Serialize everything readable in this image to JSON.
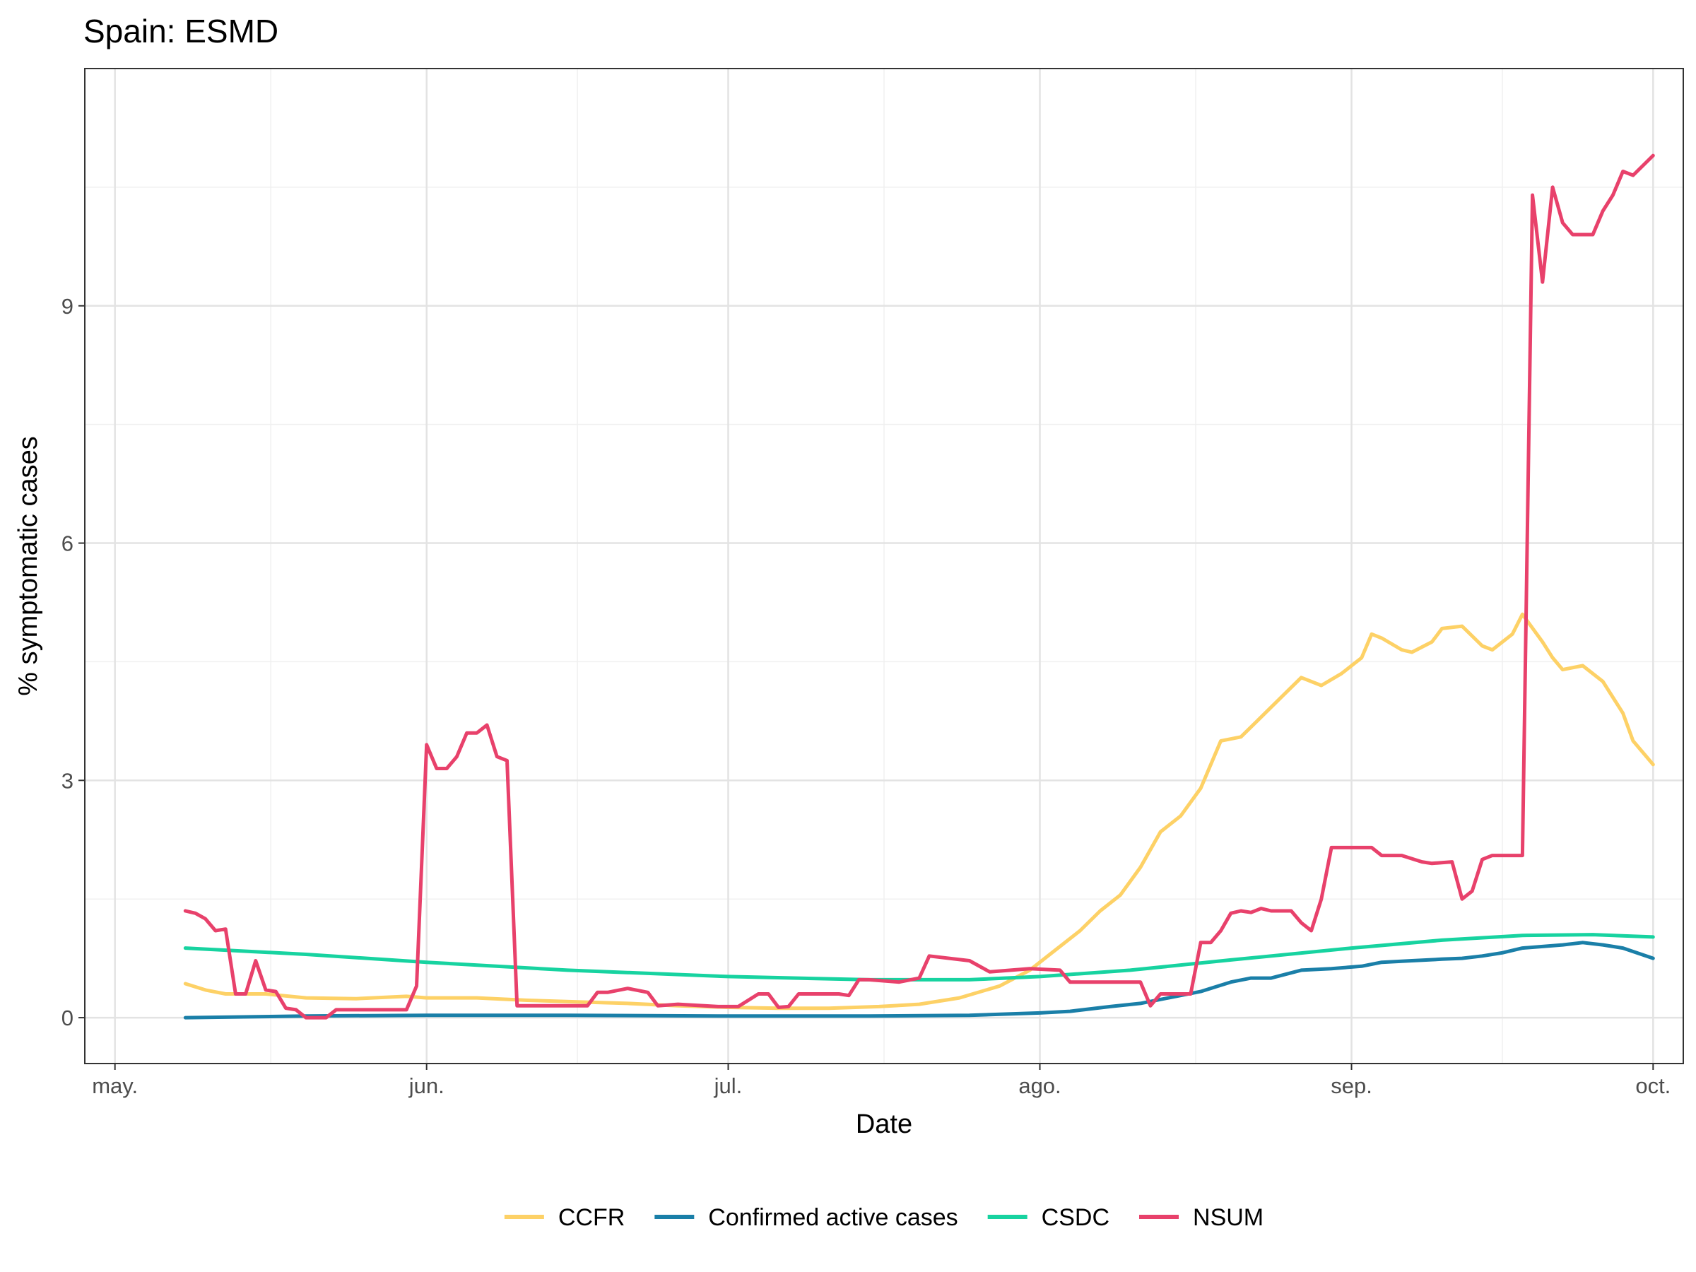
{
  "chart_data": {
    "type": "line",
    "title": "Spain: ESMD",
    "xlabel": "Date",
    "ylabel": "% symptomatic cases",
    "x_axis": {
      "type": "date",
      "range": [
        "2020-04-28",
        "2020-10-04"
      ],
      "ticks": [
        {
          "date": "2020-05-01",
          "label": "may."
        },
        {
          "date": "2020-06-01",
          "label": "jun."
        },
        {
          "date": "2020-07-01",
          "label": "jul."
        },
        {
          "date": "2020-08-01",
          "label": "ago."
        },
        {
          "date": "2020-09-01",
          "label": "sep."
        },
        {
          "date": "2020-10-01",
          "label": "oct."
        }
      ]
    },
    "y_axis": {
      "range": [
        -0.58,
        12.0
      ],
      "ticks": [
        0,
        3,
        6,
        9
      ],
      "tick_labels": [
        "0",
        "3",
        "6",
        "9"
      ]
    },
    "grid": true,
    "legend": {
      "position": "bottom"
    },
    "series": [
      {
        "name": "CCFR",
        "color": "#FDD166",
        "points": [
          [
            "2020-05-08",
            0.43
          ],
          [
            "2020-05-10",
            0.35
          ],
          [
            "2020-05-12",
            0.3
          ],
          [
            "2020-05-16",
            0.3
          ],
          [
            "2020-05-20",
            0.25
          ],
          [
            "2020-05-25",
            0.24
          ],
          [
            "2020-05-30",
            0.27
          ],
          [
            "2020-06-01",
            0.25
          ],
          [
            "2020-06-06",
            0.25
          ],
          [
            "2020-06-11",
            0.22
          ],
          [
            "2020-06-16",
            0.2
          ],
          [
            "2020-06-21",
            0.18
          ],
          [
            "2020-06-26",
            0.15
          ],
          [
            "2020-07-01",
            0.13
          ],
          [
            "2020-07-06",
            0.12
          ],
          [
            "2020-07-11",
            0.12
          ],
          [
            "2020-07-16",
            0.14
          ],
          [
            "2020-07-20",
            0.17
          ],
          [
            "2020-07-24",
            0.25
          ],
          [
            "2020-07-28",
            0.4
          ],
          [
            "2020-07-31",
            0.6
          ],
          [
            "2020-08-02",
            0.8
          ],
          [
            "2020-08-05",
            1.1
          ],
          [
            "2020-08-07",
            1.35
          ],
          [
            "2020-08-09",
            1.55
          ],
          [
            "2020-08-11",
            1.9
          ],
          [
            "2020-08-13",
            2.35
          ],
          [
            "2020-08-15",
            2.55
          ],
          [
            "2020-08-17",
            2.9
          ],
          [
            "2020-08-19",
            3.5
          ],
          [
            "2020-08-21",
            3.55
          ],
          [
            "2020-08-23",
            3.8
          ],
          [
            "2020-08-25",
            4.05
          ],
          [
            "2020-08-27",
            4.3
          ],
          [
            "2020-08-29",
            4.2
          ],
          [
            "2020-08-31",
            4.35
          ],
          [
            "2020-09-02",
            4.55
          ],
          [
            "2020-09-03",
            4.85
          ],
          [
            "2020-09-04",
            4.8
          ],
          [
            "2020-09-06",
            4.65
          ],
          [
            "2020-09-07",
            4.62
          ],
          [
            "2020-09-09",
            4.75
          ],
          [
            "2020-09-10",
            4.92
          ],
          [
            "2020-09-12",
            4.95
          ],
          [
            "2020-09-14",
            4.7
          ],
          [
            "2020-09-15",
            4.65
          ],
          [
            "2020-09-17",
            4.85
          ],
          [
            "2020-09-18",
            5.1
          ],
          [
            "2020-09-20",
            4.75
          ],
          [
            "2020-09-21",
            4.55
          ],
          [
            "2020-09-22",
            4.4
          ],
          [
            "2020-09-24",
            4.45
          ],
          [
            "2020-09-26",
            4.25
          ],
          [
            "2020-09-28",
            3.85
          ],
          [
            "2020-09-29",
            3.5
          ],
          [
            "2020-10-01",
            3.2
          ]
        ]
      },
      {
        "name": "Confirmed active cases",
        "color": "#1A7FA8",
        "points": [
          [
            "2020-05-08",
            0.0
          ],
          [
            "2020-05-20",
            0.02
          ],
          [
            "2020-06-01",
            0.03
          ],
          [
            "2020-06-15",
            0.03
          ],
          [
            "2020-07-01",
            0.02
          ],
          [
            "2020-07-15",
            0.02
          ],
          [
            "2020-07-25",
            0.03
          ],
          [
            "2020-08-01",
            0.06
          ],
          [
            "2020-08-04",
            0.08
          ],
          [
            "2020-08-08",
            0.14
          ],
          [
            "2020-08-11",
            0.18
          ],
          [
            "2020-08-15",
            0.28
          ],
          [
            "2020-08-17",
            0.33
          ],
          [
            "2020-08-20",
            0.45
          ],
          [
            "2020-08-22",
            0.5
          ],
          [
            "2020-08-24",
            0.5
          ],
          [
            "2020-08-27",
            0.6
          ],
          [
            "2020-08-30",
            0.62
          ],
          [
            "2020-09-02",
            0.65
          ],
          [
            "2020-09-04",
            0.7
          ],
          [
            "2020-09-07",
            0.72
          ],
          [
            "2020-09-10",
            0.74
          ],
          [
            "2020-09-12",
            0.75
          ],
          [
            "2020-09-14",
            0.78
          ],
          [
            "2020-09-16",
            0.82
          ],
          [
            "2020-09-18",
            0.88
          ],
          [
            "2020-09-20",
            0.9
          ],
          [
            "2020-09-22",
            0.92
          ],
          [
            "2020-09-24",
            0.95
          ],
          [
            "2020-09-26",
            0.92
          ],
          [
            "2020-09-28",
            0.88
          ],
          [
            "2020-10-01",
            0.75
          ]
        ]
      },
      {
        "name": "CSDC",
        "color": "#17D3A0",
        "points": [
          [
            "2020-05-08",
            0.88
          ],
          [
            "2020-05-20",
            0.8
          ],
          [
            "2020-06-01",
            0.7
          ],
          [
            "2020-06-15",
            0.6
          ],
          [
            "2020-07-01",
            0.52
          ],
          [
            "2020-07-15",
            0.48
          ],
          [
            "2020-07-25",
            0.48
          ],
          [
            "2020-08-01",
            0.52
          ],
          [
            "2020-08-10",
            0.6
          ],
          [
            "2020-08-20",
            0.73
          ],
          [
            "2020-09-01",
            0.88
          ],
          [
            "2020-09-10",
            0.98
          ],
          [
            "2020-09-18",
            1.04
          ],
          [
            "2020-09-25",
            1.05
          ],
          [
            "2020-10-01",
            1.02
          ]
        ]
      },
      {
        "name": "NSUM",
        "color": "#E8416B",
        "points": [
          [
            "2020-05-08",
            1.35
          ],
          [
            "2020-05-09",
            1.32
          ],
          [
            "2020-05-10",
            1.25
          ],
          [
            "2020-05-11",
            1.1
          ],
          [
            "2020-05-12",
            1.12
          ],
          [
            "2020-05-13",
            0.3
          ],
          [
            "2020-05-14",
            0.3
          ],
          [
            "2020-05-15",
            0.72
          ],
          [
            "2020-05-16",
            0.35
          ],
          [
            "2020-05-17",
            0.33
          ],
          [
            "2020-05-18",
            0.12
          ],
          [
            "2020-05-19",
            0.1
          ],
          [
            "2020-05-20",
            0.0
          ],
          [
            "2020-05-21",
            0.0
          ],
          [
            "2020-05-22",
            0.0
          ],
          [
            "2020-05-23",
            0.1
          ],
          [
            "2020-05-30",
            0.1
          ],
          [
            "2020-05-31",
            0.4
          ],
          [
            "2020-06-01",
            3.45
          ],
          [
            "2020-06-02",
            3.15
          ],
          [
            "2020-06-03",
            3.15
          ],
          [
            "2020-06-04",
            3.3
          ],
          [
            "2020-06-05",
            3.6
          ],
          [
            "2020-06-06",
            3.6
          ],
          [
            "2020-06-07",
            3.7
          ],
          [
            "2020-06-08",
            3.3
          ],
          [
            "2020-06-09",
            3.25
          ],
          [
            "2020-06-10",
            0.15
          ],
          [
            "2020-06-12",
            0.15
          ],
          [
            "2020-06-17",
            0.15
          ],
          [
            "2020-06-18",
            0.32
          ],
          [
            "2020-06-19",
            0.32
          ],
          [
            "2020-06-21",
            0.37
          ],
          [
            "2020-06-23",
            0.32
          ],
          [
            "2020-06-24",
            0.15
          ],
          [
            "2020-06-26",
            0.17
          ],
          [
            "2020-06-30",
            0.14
          ],
          [
            "2020-07-02",
            0.14
          ],
          [
            "2020-07-04",
            0.3
          ],
          [
            "2020-07-05",
            0.3
          ],
          [
            "2020-07-06",
            0.13
          ],
          [
            "2020-07-07",
            0.14
          ],
          [
            "2020-07-08",
            0.3
          ],
          [
            "2020-07-10",
            0.3
          ],
          [
            "2020-07-12",
            0.3
          ],
          [
            "2020-07-13",
            0.28
          ],
          [
            "2020-07-14",
            0.48
          ],
          [
            "2020-07-15",
            0.48
          ],
          [
            "2020-07-18",
            0.45
          ],
          [
            "2020-07-20",
            0.5
          ],
          [
            "2020-07-21",
            0.78
          ],
          [
            "2020-07-25",
            0.72
          ],
          [
            "2020-07-27",
            0.58
          ],
          [
            "2020-07-31",
            0.62
          ],
          [
            "2020-08-03",
            0.6
          ],
          [
            "2020-08-04",
            0.45
          ],
          [
            "2020-08-05",
            0.45
          ],
          [
            "2020-08-06",
            0.45
          ],
          [
            "2020-08-07",
            0.45
          ],
          [
            "2020-08-08",
            0.45
          ],
          [
            "2020-08-09",
            0.45
          ],
          [
            "2020-08-10",
            0.45
          ],
          [
            "2020-08-11",
            0.45
          ],
          [
            "2020-08-12",
            0.15
          ],
          [
            "2020-08-13",
            0.3
          ],
          [
            "2020-08-15",
            0.3
          ],
          [
            "2020-08-16",
            0.3
          ],
          [
            "2020-08-17",
            0.95
          ],
          [
            "2020-08-18",
            0.95
          ],
          [
            "2020-08-19",
            1.1
          ],
          [
            "2020-08-20",
            1.32
          ],
          [
            "2020-08-21",
            1.35
          ],
          [
            "2020-08-22",
            1.33
          ],
          [
            "2020-08-23",
            1.38
          ],
          [
            "2020-08-24",
            1.35
          ],
          [
            "2020-08-26",
            1.35
          ],
          [
            "2020-08-27",
            1.2
          ],
          [
            "2020-08-28",
            1.1
          ],
          [
            "2020-08-29",
            1.5
          ],
          [
            "2020-08-30",
            2.15
          ],
          [
            "2020-09-02",
            2.15
          ],
          [
            "2020-09-03",
            2.15
          ],
          [
            "2020-09-04",
            2.05
          ],
          [
            "2020-09-06",
            2.05
          ],
          [
            "2020-09-08",
            1.97
          ],
          [
            "2020-09-09",
            1.95
          ],
          [
            "2020-09-11",
            1.97
          ],
          [
            "2020-09-12",
            1.5
          ],
          [
            "2020-09-13",
            1.6
          ],
          [
            "2020-09-14",
            2.0
          ],
          [
            "2020-09-15",
            2.05
          ],
          [
            "2020-09-18",
            2.05
          ],
          [
            "2020-09-19",
            10.4
          ],
          [
            "2020-09-20",
            9.3
          ],
          [
            "2020-09-21",
            10.5
          ],
          [
            "2020-09-22",
            10.05
          ],
          [
            "2020-09-23",
            9.9
          ],
          [
            "2020-09-25",
            9.9
          ],
          [
            "2020-09-26",
            10.2
          ],
          [
            "2020-09-27",
            10.4
          ],
          [
            "2020-09-28",
            10.7
          ],
          [
            "2020-09-29",
            10.65
          ],
          [
            "2020-10-01",
            10.9
          ]
        ]
      }
    ]
  }
}
